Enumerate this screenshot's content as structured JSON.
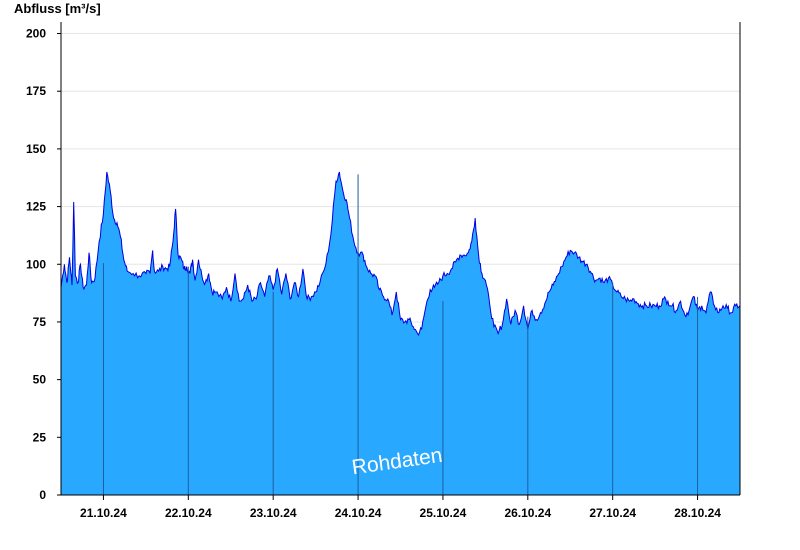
{
  "chart_data": {
    "type": "area",
    "title": "",
    "ylabel": "Abfluss [m³/s]",
    "xlabel": "",
    "ylim": [
      0,
      205
    ],
    "yticks": [
      0,
      25,
      50,
      75,
      100,
      125,
      150,
      175,
      200
    ],
    "day_labels": [
      "21.10.24",
      "22.10.24",
      "23.10.24",
      "24.10.24",
      "25.10.24",
      "26.10.24",
      "27.10.24",
      "28.10.24"
    ],
    "x_start": "20.10.24 12:00",
    "x_end": "28.10.24 12:00",
    "grid": true,
    "area_color": "#29a8ff",
    "line_color": "#0000e0",
    "day_line_color": "#1d5e9e",
    "watermark": "Rohdaten",
    "series": [
      {
        "values": [
          [
            0,
            90
          ],
          [
            0.04,
            100
          ],
          [
            0.07,
            92
          ],
          [
            0.1,
            103
          ],
          [
            0.13,
            91
          ],
          [
            0.15,
            127
          ],
          [
            0.17,
            95
          ],
          [
            0.2,
            92
          ],
          [
            0.23,
            100
          ],
          [
            0.26,
            90
          ],
          [
            0.3,
            91
          ],
          [
            0.33,
            105
          ],
          [
            0.36,
            92
          ],
          [
            0.4,
            94
          ],
          [
            0.45,
            110
          ],
          [
            0.5,
            122
          ],
          [
            0.54,
            140
          ],
          [
            0.58,
            132
          ],
          [
            0.62,
            120
          ],
          [
            0.66,
            118
          ],
          [
            0.7,
            112
          ],
          [
            0.74,
            102
          ],
          [
            0.78,
            97
          ],
          [
            0.85,
            96
          ],
          [
            0.92,
            95
          ],
          [
            1.0,
            96
          ],
          [
            1.05,
            96
          ],
          [
            1.08,
            106
          ],
          [
            1.1,
            97
          ],
          [
            1.15,
            97
          ],
          [
            1.2,
            99
          ],
          [
            1.24,
            98
          ],
          [
            1.28,
            99
          ],
          [
            1.32,
            110
          ],
          [
            1.35,
            124
          ],
          [
            1.38,
            104
          ],
          [
            1.42,
            102
          ],
          [
            1.45,
            98
          ],
          [
            1.48,
            99
          ],
          [
            1.52,
            96
          ],
          [
            1.55,
            102
          ],
          [
            1.58,
            93
          ],
          [
            1.62,
            102
          ],
          [
            1.66,
            95
          ],
          [
            1.7,
            92
          ],
          [
            1.74,
            96
          ],
          [
            1.78,
            88
          ],
          [
            1.82,
            88
          ],
          [
            1.9,
            85
          ],
          [
            1.95,
            90
          ],
          [
            2.0,
            84
          ],
          [
            2.05,
            96
          ],
          [
            2.1,
            84
          ],
          [
            2.15,
            85
          ],
          [
            2.2,
            91
          ],
          [
            2.25,
            84
          ],
          [
            2.3,
            85
          ],
          [
            2.35,
            92
          ],
          [
            2.4,
            86
          ],
          [
            2.45,
            95
          ],
          [
            2.5,
            89
          ],
          [
            2.55,
            98
          ],
          [
            2.6,
            87
          ],
          [
            2.65,
            96
          ],
          [
            2.7,
            85
          ],
          [
            2.75,
            92
          ],
          [
            2.8,
            86
          ],
          [
            2.85,
            98
          ],
          [
            2.9,
            85
          ],
          [
            2.95,
            86
          ],
          [
            3.0,
            88
          ],
          [
            3.05,
            92
          ],
          [
            3.12,
            100
          ],
          [
            3.18,
            113
          ],
          [
            3.24,
            136
          ],
          [
            3.28,
            140
          ],
          [
            3.32,
            132
          ],
          [
            3.36,
            128
          ],
          [
            3.4,
            120
          ],
          [
            3.45,
            110
          ],
          [
            3.5,
            105
          ],
          [
            3.56,
            104
          ],
          [
            3.6,
            99
          ],
          [
            3.65,
            96
          ],
          [
            3.7,
            95
          ],
          [
            3.75,
            89
          ],
          [
            3.8,
            86
          ],
          [
            3.85,
            85
          ],
          [
            3.9,
            78
          ],
          [
            3.95,
            88
          ],
          [
            4.0,
            76
          ],
          [
            4.05,
            75
          ],
          [
            4.1,
            76
          ],
          [
            4.15,
            73
          ],
          [
            4.2,
            70
          ],
          [
            4.25,
            72
          ],
          [
            4.3,
            82
          ],
          [
            4.35,
            89
          ],
          [
            4.4,
            90
          ],
          [
            4.45,
            92
          ],
          [
            4.5,
            95
          ],
          [
            4.55,
            96
          ],
          [
            4.6,
            98
          ],
          [
            4.65,
            101
          ],
          [
            4.7,
            104
          ],
          [
            4.75,
            104
          ],
          [
            4.8,
            105
          ],
          [
            4.84,
            110
          ],
          [
            4.88,
            120
          ],
          [
            4.92,
            104
          ],
          [
            4.96,
            96
          ],
          [
            5.0,
            93
          ],
          [
            5.05,
            83
          ],
          [
            5.1,
            73
          ],
          [
            5.15,
            70
          ],
          [
            5.2,
            74
          ],
          [
            5.25,
            85
          ],
          [
            5.3,
            74
          ],
          [
            5.35,
            80
          ],
          [
            5.4,
            74
          ],
          [
            5.45,
            82
          ],
          [
            5.5,
            72
          ],
          [
            5.55,
            80
          ],
          [
            5.6,
            76
          ],
          [
            5.65,
            79
          ],
          [
            5.7,
            83
          ],
          [
            5.75,
            88
          ],
          [
            5.8,
            91
          ],
          [
            5.85,
            95
          ],
          [
            5.9,
            99
          ],
          [
            5.95,
            103
          ],
          [
            6.0,
            106
          ],
          [
            6.05,
            105
          ],
          [
            6.1,
            103
          ],
          [
            6.15,
            101
          ],
          [
            6.2,
            100
          ],
          [
            6.25,
            96
          ],
          [
            6.3,
            93
          ],
          [
            6.35,
            94
          ],
          [
            6.4,
            92
          ],
          [
            6.45,
            94
          ],
          [
            6.5,
            91
          ],
          [
            6.55,
            88
          ],
          [
            6.6,
            86
          ],
          [
            6.65,
            85
          ],
          [
            6.7,
            84
          ],
          [
            6.75,
            85
          ],
          [
            6.8,
            83
          ],
          [
            6.85,
            82
          ],
          [
            6.9,
            82
          ],
          [
            6.95,
            82
          ],
          [
            7.0,
            82
          ],
          [
            7.05,
            82
          ],
          [
            7.1,
            85
          ],
          [
            7.15,
            84
          ],
          [
            7.2,
            82
          ],
          [
            7.25,
            80
          ],
          [
            7.3,
            84
          ],
          [
            7.35,
            78
          ],
          [
            7.4,
            80
          ],
          [
            7.45,
            86
          ],
          [
            7.5,
            80
          ],
          [
            7.55,
            82
          ],
          [
            7.6,
            79
          ],
          [
            7.65,
            88
          ],
          [
            7.7,
            82
          ],
          [
            7.75,
            79
          ],
          [
            7.8,
            82
          ],
          [
            7.85,
            81
          ],
          [
            7.9,
            79
          ],
          [
            7.95,
            82
          ],
          [
            8.0,
            82
          ]
        ]
      }
    ]
  }
}
